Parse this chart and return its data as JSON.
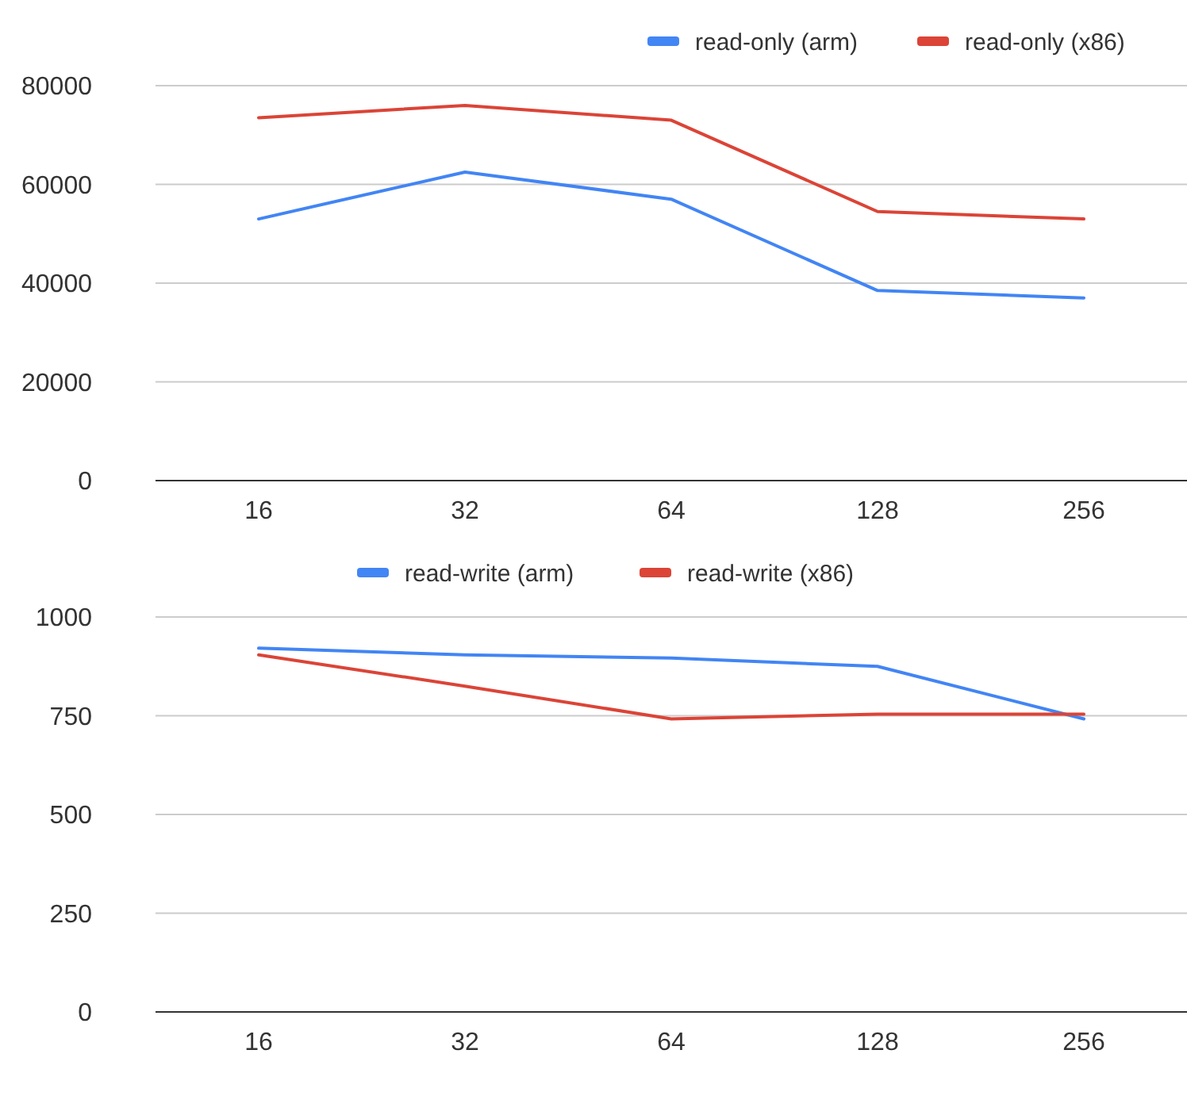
{
  "chart_data": [
    {
      "type": "line",
      "categories": [
        "16",
        "32",
        "64",
        "128",
        "256"
      ],
      "ylim": [
        0,
        80000
      ],
      "yticks": [
        0,
        20000,
        40000,
        60000,
        80000
      ],
      "grid": "y",
      "legend": "top right",
      "marker": "none",
      "line_style": "solid",
      "series": [
        {
          "name": "read-only (arm)",
          "color": "#4285f4",
          "values": [
            53000,
            62500,
            57000,
            38500,
            37000
          ]
        },
        {
          "name": "read-only (x86)",
          "color": "#db4437",
          "values": [
            73500,
            76000,
            73000,
            54500,
            53000
          ]
        }
      ]
    },
    {
      "type": "line",
      "categories": [
        "16",
        "32",
        "64",
        "128",
        "256"
      ],
      "ylim": [
        0,
        1000
      ],
      "yticks": [
        0,
        250,
        500,
        750,
        1000
      ],
      "grid": "y",
      "legend": "top",
      "marker": "none",
      "line_style": "solid",
      "series": [
        {
          "name": "read-write (arm)",
          "color": "#4285f4",
          "values": [
            921,
            904,
            896,
            875,
            742
          ]
        },
        {
          "name": "read-write (x86)",
          "color": "#db4437",
          "values": [
            904,
            825,
            742,
            754,
            754
          ]
        }
      ]
    }
  ]
}
